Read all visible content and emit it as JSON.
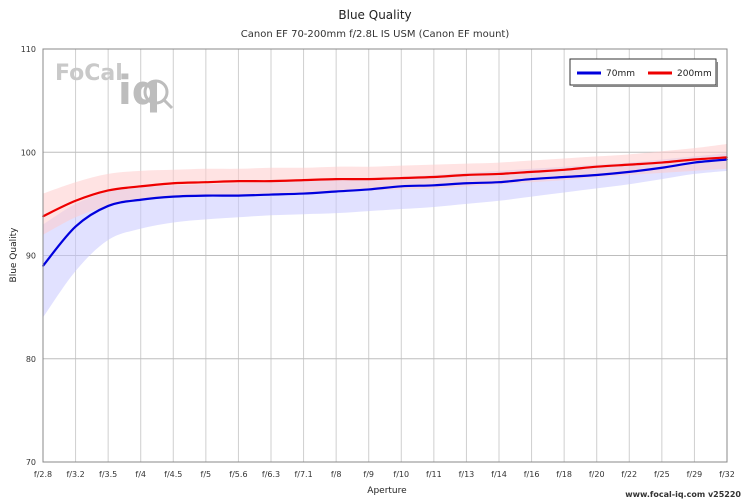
{
  "chart_data": {
    "type": "line",
    "title": "Blue Quality",
    "subtitle": "Canon EF 70-200mm f/2.8L IS USM (Canon EF mount)",
    "xlabel": "Aperture",
    "ylabel": "Blue Quality",
    "ylim": [
      70,
      110
    ],
    "yticks": [
      70,
      80,
      90,
      100,
      110
    ],
    "grid": true,
    "legend_position": "top-right",
    "categories": [
      "f/2.8",
      "f/3.2",
      "f/3.5",
      "f/4",
      "f/4.5",
      "f/5",
      "f/5.6",
      "f/6.3",
      "f/7.1",
      "f/8",
      "f/9",
      "f/10",
      "f/11",
      "f/13",
      "f/14",
      "f/16",
      "f/18",
      "f/20",
      "f/22",
      "f/25",
      "f/29",
      "f/32"
    ],
    "series": [
      {
        "name": "70mm",
        "color": "#0000dd",
        "band_color": "#c8c8ff",
        "values": [
          89.0,
          92.8,
          94.8,
          95.4,
          95.7,
          95.8,
          95.8,
          95.9,
          96.0,
          96.2,
          96.4,
          96.7,
          96.8,
          97.0,
          97.1,
          97.4,
          97.6,
          97.8,
          98.1,
          98.5,
          99.0,
          99.3
        ],
        "upper": [
          93.0,
          95.0,
          96.2,
          96.6,
          96.8,
          96.9,
          97.0,
          97.1,
          97.2,
          97.3,
          97.4,
          97.6,
          97.8,
          98.0,
          98.2,
          98.4,
          98.6,
          98.8,
          99.0,
          99.3,
          99.6,
          99.9
        ],
        "lower": [
          84.0,
          88.5,
          91.5,
          92.6,
          93.2,
          93.5,
          93.7,
          93.9,
          94.0,
          94.1,
          94.3,
          94.5,
          94.7,
          95.0,
          95.3,
          95.7,
          96.1,
          96.5,
          96.9,
          97.4,
          97.9,
          98.2
        ]
      },
      {
        "name": "200mm",
        "color": "#ee0000",
        "band_color": "#ffcccc",
        "values": [
          93.8,
          95.3,
          96.3,
          96.7,
          97.0,
          97.1,
          97.2,
          97.2,
          97.3,
          97.4,
          97.4,
          97.5,
          97.6,
          97.8,
          97.9,
          98.1,
          98.3,
          98.6,
          98.8,
          99.0,
          99.3,
          99.5
        ],
        "upper": [
          96.0,
          97.1,
          97.9,
          98.2,
          98.3,
          98.4,
          98.4,
          98.5,
          98.5,
          98.6,
          98.6,
          98.7,
          98.8,
          98.9,
          99.0,
          99.2,
          99.4,
          99.6,
          99.8,
          100.1,
          100.4,
          100.8
        ],
        "lower": [
          92.0,
          93.7,
          94.8,
          95.3,
          95.6,
          95.8,
          95.9,
          96.0,
          96.1,
          96.2,
          96.3,
          96.4,
          96.5,
          96.7,
          96.9,
          97.1,
          97.3,
          97.6,
          97.8,
          98.0,
          98.2,
          98.4
        ]
      }
    ]
  },
  "logo": {
    "name": "Focal iQ",
    "focal_text": "FoCal",
    "iq_text": "iq"
  },
  "footer": {
    "text": "www.focal-iq.com  v25220"
  }
}
